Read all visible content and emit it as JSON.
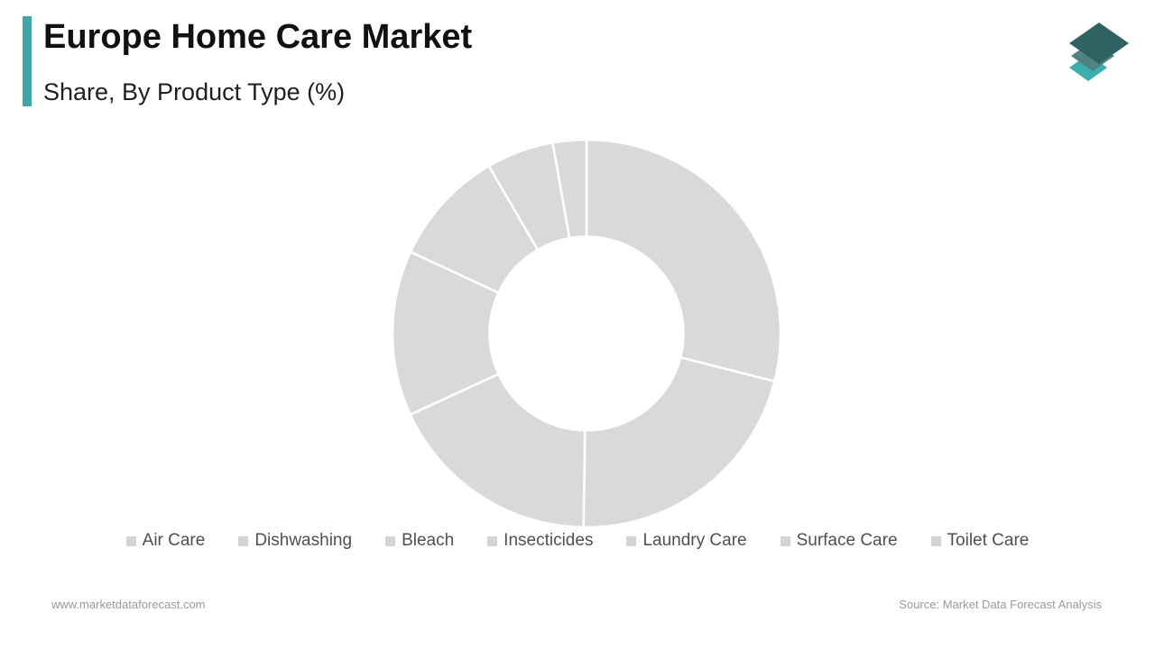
{
  "header": {
    "title": "Europe Home Care Market",
    "subtitle": "Share, By Product Type (%)",
    "accent_color": "#3fa5a6"
  },
  "logo": {
    "name": "Market Data Forecast logo",
    "layer_colors": [
      "#3bafb0",
      "#4e8283",
      "#2f6362"
    ]
  },
  "chart_data": {
    "type": "pie",
    "variant": "donut",
    "title": "Europe Home Care Market",
    "subtitle": "Share, By Product Type (%)",
    "unit": "%",
    "categories": [
      "Air Care",
      "Dishwashing",
      "Bleach",
      "Insecticides",
      "Laundry Care",
      "Surface Care",
      "Toilet Care"
    ],
    "values": [
      29.0,
      21.3,
      17.9,
      13.8,
      9.7,
      5.6,
      2.8
    ],
    "start_angle_deg": 0,
    "direction": "clockwise",
    "inner_radius_ratio": 0.5,
    "slice_color": "#d9d9d9",
    "divider_color": "#ffffff",
    "legend_position": "bottom",
    "legend_marker_color": "#d4d4d4",
    "data_labels_shown": false
  },
  "footer": {
    "website": "www.marketdataforecast.com",
    "source": "Source: Market Data Forecast Analysis"
  }
}
